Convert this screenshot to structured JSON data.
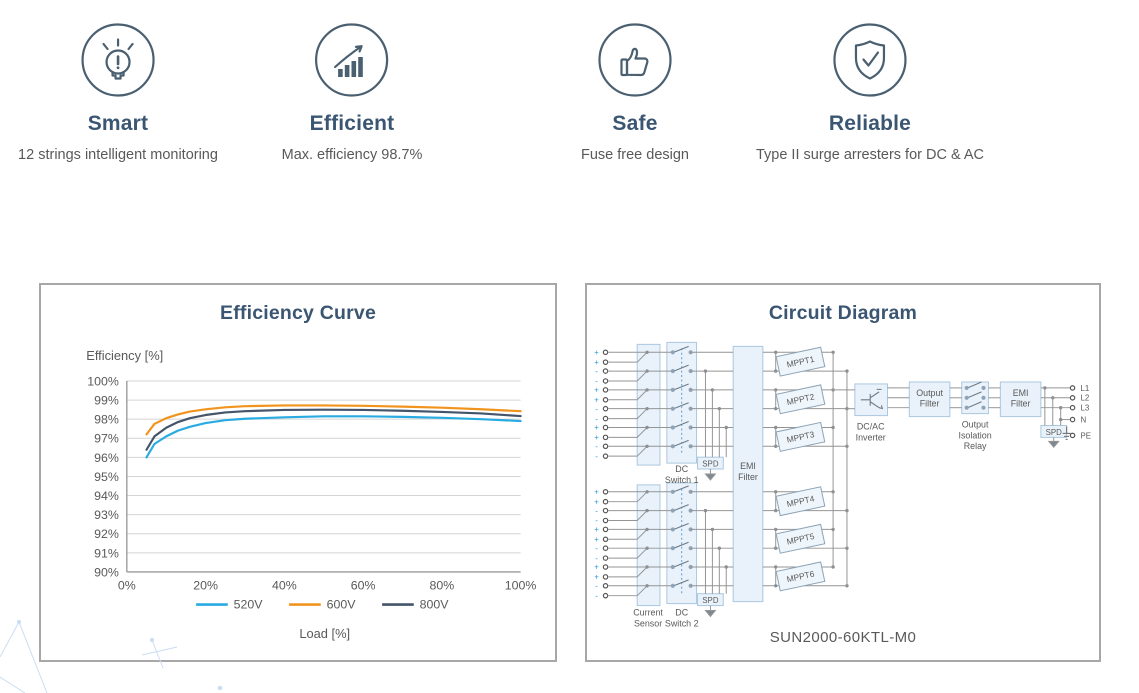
{
  "features": [
    {
      "icon": "lightbulb-idea-icon",
      "title": "Smart",
      "description": "12 strings intelligent monitoring"
    },
    {
      "icon": "growth-bars-arrow-icon",
      "title": "Efficient",
      "description": "Max. efficiency 98.7%"
    },
    {
      "icon": "thumbs-up-icon",
      "title": "Safe",
      "description": "Fuse free design"
    },
    {
      "icon": "shield-check-icon",
      "title": "Reliable",
      "description": "Type II surge arresters for DC & AC"
    }
  ],
  "efficiency_panel": {
    "title": "Efficiency Curve"
  },
  "chart_data": {
    "type": "line",
    "title": "Efficiency Curve",
    "xlabel": "Load [%]",
    "ylabel": "Efficiency [%]",
    "xlim": [
      0,
      100
    ],
    "ylim": [
      90,
      100
    ],
    "grid": true,
    "legend_position": "bottom",
    "x_ticks": [
      "0%",
      "20%",
      "40%",
      "60%",
      "80%",
      "100%"
    ],
    "y_ticks": [
      "100%",
      "99%",
      "98%",
      "97%",
      "96%",
      "95%",
      "94%",
      "93%",
      "92%",
      "91%",
      "90%"
    ],
    "x": [
      5,
      7,
      10,
      13,
      16,
      20,
      25,
      30,
      40,
      50,
      60,
      70,
      80,
      90,
      100
    ],
    "series": [
      {
        "name": "520V",
        "color": "#29ABE2",
        "values": [
          96.0,
          96.7,
          97.1,
          97.4,
          97.6,
          97.8,
          97.95,
          98.02,
          98.1,
          98.15,
          98.15,
          98.12,
          98.07,
          98.0,
          97.9
        ]
      },
      {
        "name": "600V",
        "color": "#F0941E",
        "values": [
          97.2,
          97.75,
          98.05,
          98.25,
          98.4,
          98.52,
          98.62,
          98.68,
          98.72,
          98.72,
          98.7,
          98.66,
          98.6,
          98.52,
          98.42
        ]
      },
      {
        "name": "800V",
        "color": "#44546A",
        "values": [
          96.4,
          97.1,
          97.55,
          97.85,
          98.05,
          98.22,
          98.35,
          98.42,
          98.48,
          98.5,
          98.48,
          98.44,
          98.38,
          98.3,
          98.16
        ]
      }
    ]
  },
  "circuit_panel": {
    "title": "Circuit Diagram",
    "model": "SUN2000-60KTL-M0",
    "terminal_signs": [
      "+",
      "+",
      "-",
      "-",
      "+",
      "+",
      "-",
      "-",
      "+",
      "+",
      "-",
      "-"
    ],
    "mppt_labels": [
      "MPPT1",
      "MPPT2",
      "MPPT3",
      "MPPT4",
      "MPPT5",
      "MPPT6"
    ],
    "output_terminals": [
      "L1",
      "L2",
      "L3",
      "N",
      "PE"
    ],
    "blocks": {
      "current_sensor": [
        "Current",
        "Sensor"
      ],
      "dc_switch_1": [
        "DC",
        "Switch 1"
      ],
      "dc_switch_2": [
        "DC",
        "Switch 2"
      ],
      "spd": "SPD",
      "emi_filter": [
        "EMI",
        "Filter"
      ],
      "dc_ac_inverter": [
        "DC/AC",
        "Inverter"
      ],
      "output_filter": [
        "Output",
        "Filter"
      ],
      "output_isolation_relay": [
        "Output",
        "Isolation",
        "Relay"
      ]
    }
  },
  "colors": {
    "heading": "#3A5672",
    "body_text": "#595959",
    "icon_stroke": "#4A5F70",
    "panel_border": "#A7A7A7",
    "grid_line": "#D4D4D4",
    "axis_line": "#9B9B9B",
    "wire": "#949494",
    "junction_dot": "#8A9096",
    "block_fill": "#E9F2FA",
    "block_stroke": "#AAC7DF",
    "switch_contact": "#8FA3B6",
    "switch_link_dotted": "#5B9BD5",
    "terminal_sign": "#2E9BD6",
    "watermark": "#CBDDF3",
    "series_520v": "#29ABE2",
    "series_600v": "#F0941E",
    "series_800v": "#44546A"
  }
}
